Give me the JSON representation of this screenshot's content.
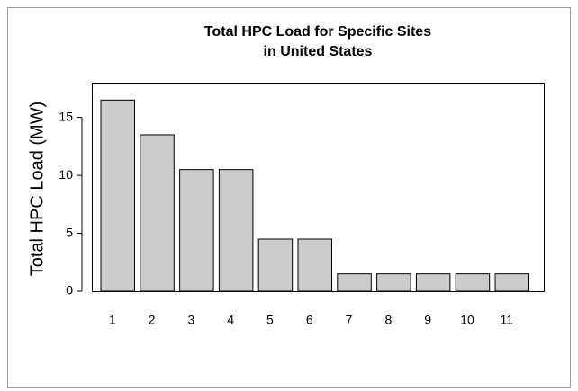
{
  "chart_data": {
    "type": "bar",
    "title": [
      "Total HPC Load for Specific Sites",
      "in United States"
    ],
    "y_label": "Total HPC Load (MW)",
    "categories": [
      "1",
      "2",
      "3",
      "4",
      "5",
      "6",
      "7",
      "8",
      "9",
      "10",
      "11"
    ],
    "values": [
      16.5,
      13.5,
      10.5,
      10.5,
      4.5,
      4.5,
      1.5,
      1.5,
      1.5,
      1.5,
      1.5
    ],
    "color": "#cccccc",
    "ylim": [
      0,
      18
    ],
    "yticks": [
      0,
      5,
      10,
      15
    ],
    "grid": false
  }
}
